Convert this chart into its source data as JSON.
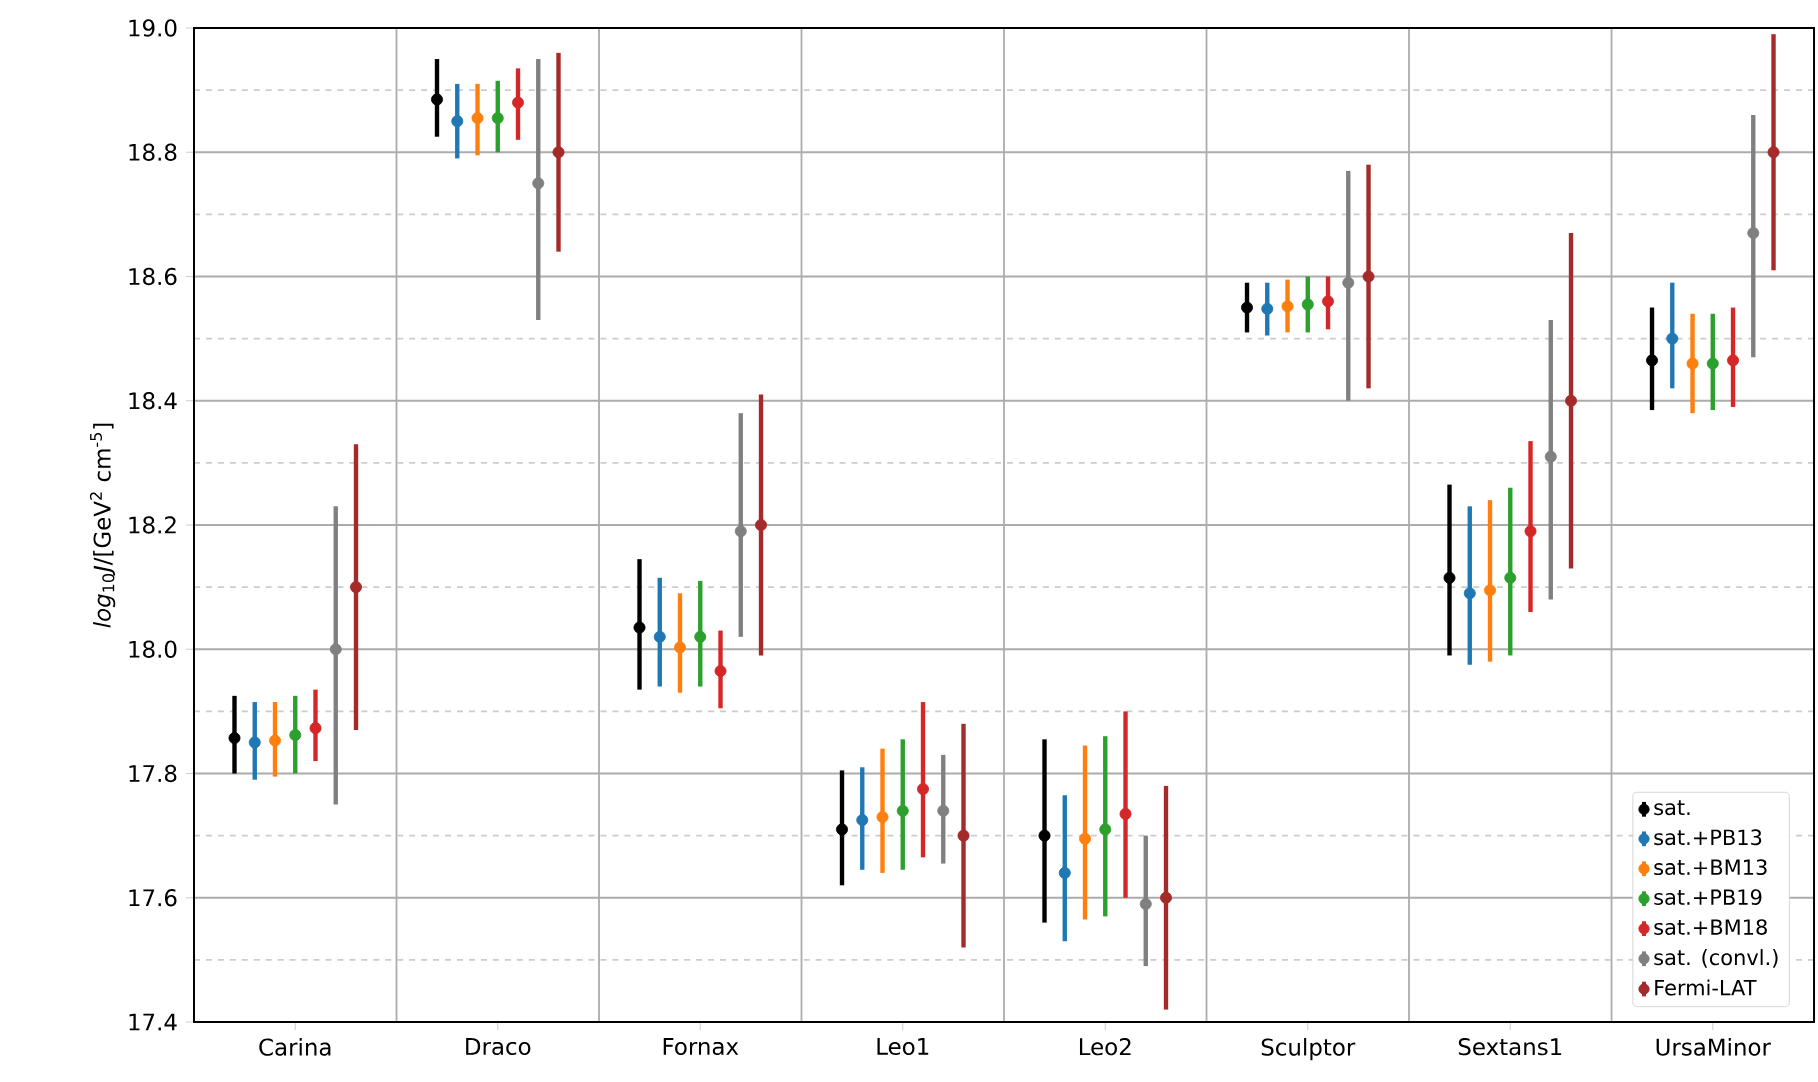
{
  "chart_data": {
    "type": "scatter",
    "ylabel": "*log*$_{10}$*J*/[GeV$^{2}$ cm$^{-5}$]",
    "categories": [
      "Carina",
      "Draco",
      "Fornax",
      "Leo1",
      "Leo2",
      "Sculptor",
      "Sextans1",
      "UrsaMinor"
    ],
    "ylim": [
      17.4,
      19.0
    ],
    "yticks": [
      17.4,
      17.6,
      17.8,
      {
        "value": 18.0,
        "label": "18.0"
      },
      18.2,
      18.4,
      18.6,
      18.8,
      {
        "value": 19.0,
        "label": "19.0"
      }
    ],
    "grid": true,
    "legend": "bottom right",
    "marker": "circle",
    "series": [
      {
        "name": "sat.",
        "color": "#000000",
        "values": [
          17.857,
          18.885,
          18.035,
          17.71,
          17.7,
          18.55,
          18.115,
          18.465
        ],
        "errors": [
          [
            17.8,
            17.925
          ],
          [
            18.825,
            18.95
          ],
          [
            17.935,
            18.145
          ],
          [
            17.62,
            17.805
          ],
          [
            17.56,
            17.855
          ],
          [
            18.51,
            18.59
          ],
          [
            17.99,
            18.265
          ],
          [
            18.385,
            18.55
          ]
        ]
      },
      {
        "name": "sat.+PB13",
        "color": "#1f77b4",
        "values": [
          17.85,
          18.85,
          18.02,
          17.725,
          17.64,
          18.548,
          18.09,
          18.5
        ],
        "errors": [
          [
            17.79,
            17.915
          ],
          [
            18.79,
            18.91
          ],
          [
            17.94,
            18.115
          ],
          [
            17.645,
            17.81
          ],
          [
            17.53,
            17.765
          ],
          [
            18.505,
            18.59
          ],
          [
            17.975,
            18.23
          ],
          [
            18.42,
            18.59
          ]
        ]
      },
      {
        "name": "sat.+BM13",
        "color": "#ff7f0e",
        "values": [
          17.853,
          18.855,
          18.003,
          17.73,
          17.695,
          18.552,
          18.095,
          18.46
        ],
        "errors": [
          [
            17.795,
            17.915
          ],
          [
            18.795,
            18.91
          ],
          [
            17.93,
            18.09
          ],
          [
            17.64,
            17.84
          ],
          [
            17.565,
            17.845
          ],
          [
            18.51,
            18.595
          ],
          [
            17.98,
            18.24
          ],
          [
            18.38,
            18.54
          ]
        ]
      },
      {
        "name": "sat.+PB19",
        "color": "#2ca02c",
        "values": [
          17.862,
          18.855,
          18.02,
          17.74,
          17.71,
          18.555,
          18.115,
          18.46
        ],
        "errors": [
          [
            17.8,
            17.925
          ],
          [
            18.8,
            18.915
          ],
          [
            17.94,
            18.11
          ],
          [
            17.645,
            17.855
          ],
          [
            17.57,
            17.86
          ],
          [
            18.51,
            18.6
          ],
          [
            17.99,
            18.26
          ],
          [
            18.385,
            18.54
          ]
        ]
      },
      {
        "name": "sat.+BM18",
        "color": "#d62728",
        "values": [
          17.873,
          18.88,
          17.965,
          17.775,
          17.735,
          18.56,
          18.19,
          18.465
        ],
        "errors": [
          [
            17.82,
            17.935
          ],
          [
            18.82,
            18.935
          ],
          [
            17.905,
            18.03
          ],
          [
            17.665,
            17.915
          ],
          [
            17.6,
            17.9
          ],
          [
            18.515,
            18.6
          ],
          [
            18.06,
            18.335
          ],
          [
            18.39,
            18.55
          ]
        ]
      },
      {
        "name": "sat. (convl.)",
        "color": "#808080",
        "values": [
          18.0,
          18.75,
          18.19,
          17.74,
          17.59,
          18.59,
          18.31,
          18.67
        ],
        "errors": [
          [
            17.75,
            18.23
          ],
          [
            18.53,
            18.95
          ],
          [
            18.02,
            18.38
          ],
          [
            17.655,
            17.83
          ],
          [
            17.49,
            17.7
          ],
          [
            18.4,
            18.77
          ],
          [
            18.08,
            18.53
          ],
          [
            18.47,
            18.86
          ]
        ]
      },
      {
        "name": "Fermi-LAT",
        "color": "#a52a2a",
        "values": [
          18.1,
          18.8,
          18.2,
          17.7,
          17.6,
          18.6,
          18.4,
          18.8
        ],
        "errors": [
          [
            17.87,
            18.33
          ],
          [
            18.64,
            18.96
          ],
          [
            17.99,
            18.41
          ],
          [
            17.52,
            17.88
          ],
          [
            17.42,
            17.78
          ],
          [
            18.42,
            18.78
          ],
          [
            18.13,
            18.67
          ],
          [
            18.61,
            18.99
          ]
        ]
      }
    ]
  }
}
